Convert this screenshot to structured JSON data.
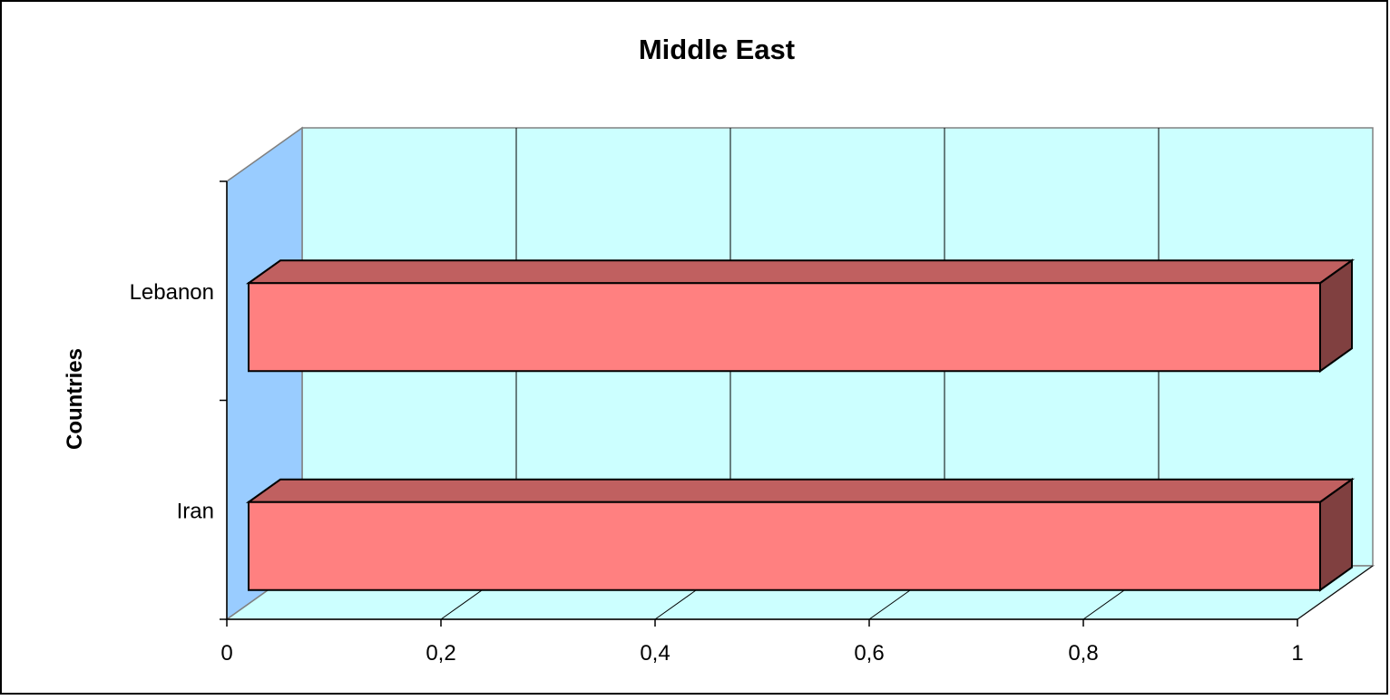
{
  "chart_data": {
    "type": "bar",
    "orientation": "horizontal",
    "style": "3d",
    "title": "Middle East",
    "xlabel": "",
    "ylabel": "Countries",
    "categories": [
      "Lebanon",
      "Iran"
    ],
    "values": [
      1,
      1
    ],
    "xlim": [
      0,
      1
    ],
    "x_ticks": [
      "0",
      "0,2",
      "0,4",
      "0,6",
      "0,8",
      "1"
    ],
    "grid": true,
    "legend": "none",
    "colors": {
      "bar_front": "#ff8080",
      "bar_top": "#c06060",
      "bar_side": "#804040",
      "back_wall": "#ccffff",
      "side_wall": "#99ccff",
      "floor": "#ccffff"
    }
  }
}
